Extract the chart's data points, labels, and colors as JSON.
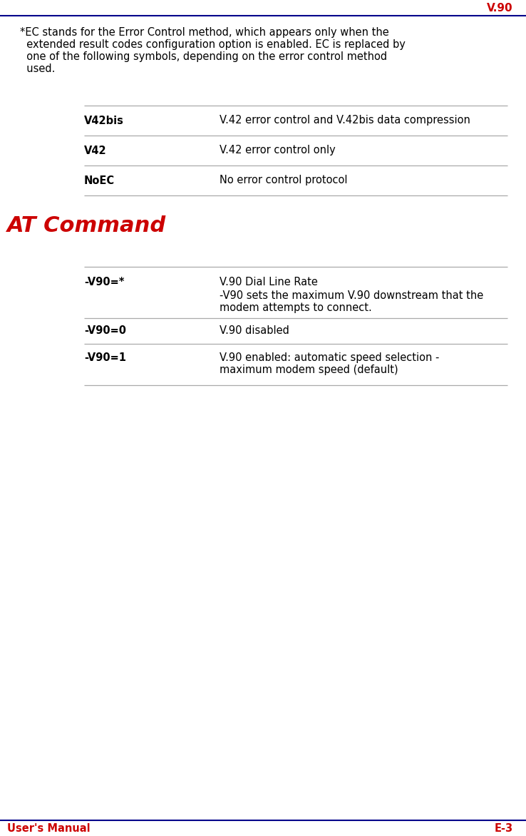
{
  "header_text": "V.90",
  "header_color": "#cc0000",
  "header_line_color": "#00008B",
  "footer_left": "User's Manual",
  "footer_right": "E-3",
  "footer_color": "#cc0000",
  "footer_line_color": "#00008B",
  "intro_lines": [
    "*EC stands for the Error Control method, which appears only when the",
    "  extended result codes configuration option is enabled. EC is replaced by",
    "  one of the following symbols, depending on the error control method",
    "  used."
  ],
  "table1": [
    {
      "col1": "V42bis",
      "col2": "V.42 error control and V.42bis data compression"
    },
    {
      "col1": "V42",
      "col2": "V.42 error control only"
    },
    {
      "col1": "NoEC",
      "col2": "No error control protocol"
    }
  ],
  "section_title": "AT Command",
  "section_title_color": "#cc0000",
  "table2": [
    {
      "col1": "-V90=*",
      "col2a": "V.90 Dial Line Rate",
      "col2b": "-V90 sets the maximum V.90 downstream that the\nmodem attempts to connect."
    },
    {
      "col1": "-V90=0",
      "col2a": "V.90 disabled",
      "col2b": ""
    },
    {
      "col1": "-V90=1",
      "col2a": "V.90 enabled: automatic speed selection -\nmaximum modem speed (default)",
      "col2b": ""
    }
  ],
  "table_line_color": "#aaaaaa",
  "bg_color": "#ffffff",
  "text_color": "#000000",
  "font_size": 10.5,
  "title_font_size": 22,
  "header_font_size": 11
}
